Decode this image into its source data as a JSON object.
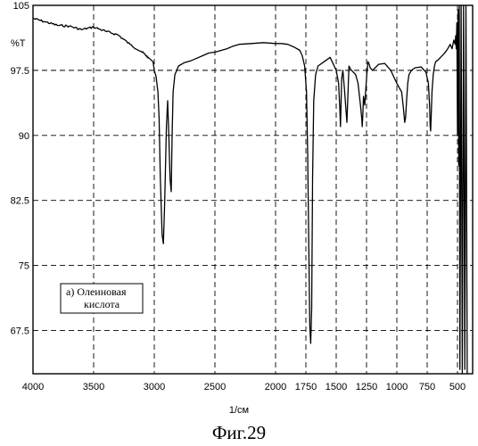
{
  "chart_data": {
    "type": "line",
    "y_unit_label": "%T",
    "xlabel": "1/см",
    "caption": "Фиг.29",
    "legend_box_lines": [
      "а) Олеиновая",
      "кислота"
    ],
    "xlim": [
      4000,
      400
    ],
    "ylim": [
      62.5,
      105
    ],
    "x_ticks": [
      4000,
      3500,
      3000,
      2500,
      2000,
      1750,
      1500,
      1250,
      1000,
      750,
      500
    ],
    "x_tick_labels": [
      "4000",
      "3500",
      "3000",
      "2500",
      "2000",
      "1750",
      "1500",
      "1250",
      "1000",
      "750",
      "500"
    ],
    "y_ticks": [
      105,
      97.5,
      90,
      82.5,
      75,
      67.5
    ],
    "y_tick_labels": [
      "105",
      "97.5",
      "90",
      "82.5",
      "75",
      "67.5"
    ],
    "grid": true,
    "series": [
      {
        "x": [
          4000,
          3900,
          3800,
          3700,
          3600,
          3500,
          3400,
          3300,
          3200,
          3100,
          3050,
          3010,
          3000,
          2985,
          2970,
          2960,
          2950,
          2935,
          2925,
          2915,
          2900,
          2890,
          2880,
          2870,
          2860,
          2853,
          2845,
          2830,
          2800,
          2750,
          2700,
          2650,
          2600,
          2550,
          2500,
          2400,
          2350,
          2300,
          2200,
          2100,
          2000,
          1950,
          1900,
          1850,
          1800,
          1780,
          1760,
          1745,
          1735,
          1725,
          1718,
          1710,
          1702,
          1695,
          1685,
          1670,
          1650,
          1600,
          1550,
          1500,
          1480,
          1470,
          1465,
          1460,
          1455,
          1445,
          1430,
          1420,
          1412,
          1405,
          1395,
          1380,
          1340,
          1320,
          1300,
          1290,
          1285,
          1280,
          1275,
          1265,
          1255,
          1248,
          1238,
          1230,
          1220,
          1200,
          1150,
          1100,
          1050,
          1000,
          960,
          945,
          935,
          928,
          920,
          910,
          900,
          880,
          850,
          800,
          760,
          740,
          730,
          725,
          721,
          716,
          710,
          700,
          690,
          680,
          660,
          640,
          620,
          600,
          580,
          560,
          545,
          530,
          520,
          515,
          510,
          505,
          500,
          495,
          490,
          485,
          480,
          470,
          460,
          450,
          440,
          430,
          420,
          410
        ],
        "y": [
          103.5,
          103.1,
          102.7,
          102.6,
          102.2,
          102.5,
          102.0,
          101.6,
          100.5,
          99.6,
          99.0,
          98.5,
          97.5,
          96.8,
          95.0,
          92.0,
          85.0,
          78.5,
          77.5,
          82.0,
          91.0,
          94.0,
          90.0,
          85.0,
          83.5,
          90.0,
          95.0,
          97.0,
          98.0,
          98.4,
          98.6,
          98.9,
          99.2,
          99.5,
          99.6,
          100.0,
          100.3,
          100.5,
          100.6,
          100.7,
          100.6,
          100.6,
          100.5,
          100.2,
          99.8,
          99.2,
          98.0,
          95.0,
          88.0,
          76.0,
          68.0,
          66.0,
          70.0,
          85.0,
          94.0,
          97.0,
          98.0,
          98.5,
          99.0,
          97.5,
          96.0,
          93.0,
          91.0,
          93.5,
          96.5,
          97.5,
          95.0,
          93.0,
          91.5,
          94.0,
          98.0,
          97.6,
          97.0,
          96.0,
          93.5,
          92.0,
          91.0,
          92.5,
          94.5,
          93.5,
          95.5,
          97.0,
          98.5,
          98.3,
          97.8,
          97.5,
          98.2,
          98.3,
          97.5,
          96.0,
          95.0,
          93.0,
          91.5,
          92.0,
          94.0,
          96.0,
          97.0,
          97.5,
          97.8,
          97.9,
          97.3,
          96.0,
          93.5,
          91.0,
          90.5,
          92.5,
          95.0,
          97.0,
          98.0,
          98.5,
          98.7,
          99.0,
          99.3,
          99.6,
          100.0,
          100.5,
          100.0,
          101.0,
          100.5,
          101.5,
          100.0,
          103.0,
          90.0,
          104.5,
          86.5,
          105.0,
          63.0,
          105.0,
          62.5,
          105.0,
          63.0,
          105.0,
          62.5,
          62.5
        ]
      }
    ]
  }
}
